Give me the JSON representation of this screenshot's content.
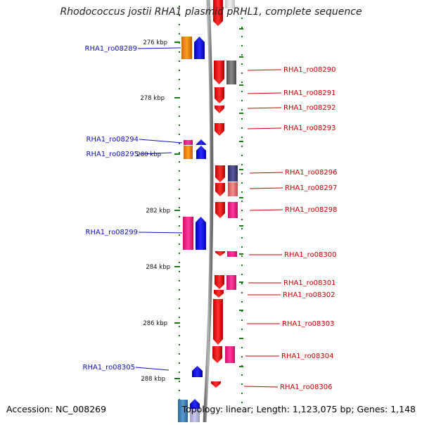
{
  "title": "Rhodococcus jostii RHA1 plasmid pRHL1, complete sequence",
  "footer": {
    "accession": "Accession: NC_008269",
    "summary": "Topology: linear; Length: 1,123,075 bp; Genes: 1,148"
  },
  "ruler": {
    "ticks": [
      "276 kbp",
      "278 kbp",
      "280 kbp",
      "282 kbp",
      "284 kbp",
      "286 kbp",
      "288 kbp"
    ]
  },
  "genes_left": [
    "RHA1_ro08289",
    "RHA1_ro08294",
    "RHA1_ro08295",
    "RHA1_ro08299",
    "RHA1_ro08305"
  ],
  "genes_right": [
    "RHA1_ro08290",
    "RHA1_ro08291",
    "RHA1_ro08292",
    "RHA1_ro08293",
    "RHA1_ro08296",
    "RHA1_ro08297",
    "RHA1_ro08298",
    "RHA1_ro08300",
    "RHA1_ro08301",
    "RHA1_ro08302",
    "RHA1_ro08303",
    "RHA1_ro08304",
    "RHA1_ro08306"
  ],
  "colors": {
    "left_label": "#1010c0",
    "right_label": "#cc0000",
    "forward_track": "#ff0000",
    "reverse_track": "#0000ff",
    "backbone": "#8a8a8a",
    "tick": "#1a7a1a",
    "orange": "#ff8c00",
    "magenta": "#ff1a8c",
    "grey": "#707070",
    "navy": "#404080",
    "salmon": "#e87070"
  }
}
